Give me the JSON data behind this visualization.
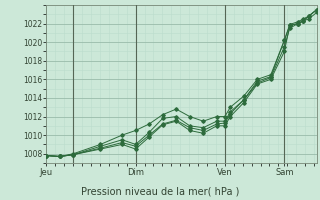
{
  "bg_color": "#cce8d8",
  "grid_color_major": "#99bbaa",
  "grid_color_minor": "#bbddcc",
  "line_color": "#2d6b3c",
  "marker_color": "#2d6b3c",
  "title": "Pression niveau de la mer( hPa )",
  "ylabel_ticks": [
    1008,
    1010,
    1012,
    1014,
    1016,
    1018,
    1020,
    1022
  ],
  "ylim": [
    1007.0,
    1023.8
  ],
  "day_labels": [
    "Jeu",
    "Dim",
    "Ven",
    "Sam"
  ],
  "day_positions": [
    0.0,
    0.33,
    0.66,
    0.88
  ],
  "day_vline_positions": [
    0.1,
    0.33,
    0.66,
    0.88
  ],
  "xlim": [
    0.0,
    1.0
  ],
  "series": [
    [
      0.0,
      1007.8,
      0.05,
      1007.7,
      0.1,
      1007.9,
      0.2,
      1008.5,
      0.28,
      1009.0,
      0.33,
      1008.5,
      0.38,
      1009.8,
      0.43,
      1011.1,
      0.48,
      1011.5,
      0.53,
      1010.5,
      0.58,
      1010.2,
      0.63,
      1011.0,
      0.66,
      1011.0,
      0.68,
      1012.0,
      0.73,
      1013.5,
      0.78,
      1015.5,
      0.83,
      1016.0,
      0.88,
      1019.0,
      0.9,
      1021.8,
      0.93,
      1022.0,
      0.95,
      1022.3,
      0.97,
      1022.5,
      1.0,
      1023.2
    ],
    [
      0.0,
      1007.8,
      0.05,
      1007.7,
      0.1,
      1007.9,
      0.2,
      1008.6,
      0.28,
      1009.2,
      0.33,
      1008.8,
      0.38,
      1010.0,
      0.43,
      1011.2,
      0.48,
      1011.6,
      0.53,
      1010.8,
      0.58,
      1010.5,
      0.63,
      1011.2,
      0.66,
      1011.3,
      0.68,
      1012.3,
      0.73,
      1013.8,
      0.78,
      1015.6,
      0.83,
      1016.2,
      0.88,
      1019.5,
      0.9,
      1021.5,
      0.93,
      1022.0,
      0.95,
      1022.3,
      0.97,
      1022.8,
      1.0,
      1023.5
    ],
    [
      0.0,
      1007.8,
      0.05,
      1007.7,
      0.1,
      1007.9,
      0.2,
      1008.8,
      0.28,
      1009.5,
      0.33,
      1009.0,
      0.38,
      1010.3,
      0.43,
      1011.8,
      0.48,
      1012.0,
      0.53,
      1011.0,
      0.58,
      1010.8,
      0.63,
      1011.5,
      0.66,
      1011.5,
      0.68,
      1012.5,
      0.73,
      1013.8,
      0.78,
      1015.8,
      0.83,
      1016.3,
      0.88,
      1020.2,
      0.9,
      1021.9,
      0.93,
      1022.2,
      0.95,
      1022.5,
      0.97,
      1022.8,
      1.0,
      1023.5
    ],
    [
      0.0,
      1007.8,
      0.05,
      1007.7,
      0.1,
      1008.0,
      0.2,
      1009.0,
      0.28,
      1010.0,
      0.33,
      1010.5,
      0.38,
      1011.2,
      0.43,
      1012.2,
      0.48,
      1012.8,
      0.53,
      1012.0,
      0.58,
      1011.5,
      0.63,
      1012.0,
      0.66,
      1012.0,
      0.68,
      1013.0,
      0.73,
      1014.2,
      0.78,
      1016.0,
      0.83,
      1016.5,
      0.88,
      1020.2,
      0.9,
      1021.8,
      0.93,
      1022.0,
      0.95,
      1022.3,
      0.97,
      1022.8,
      1.0,
      1023.5
    ]
  ]
}
